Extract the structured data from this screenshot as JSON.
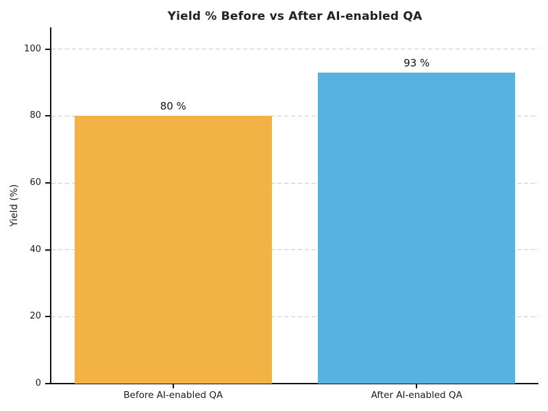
{
  "chart_data": {
    "type": "bar",
    "title": "Yield % Before vs After AI-enabled QA",
    "xlabel": "",
    "ylabel": "Yield (%)",
    "categories": [
      "Before AI-enabled QA",
      "After AI-enabled QA"
    ],
    "values": [
      80,
      93
    ],
    "value_labels": [
      "80 %",
      "93 %"
    ],
    "bar_colors": [
      "#F2B344",
      "#57B1E1"
    ],
    "yticks": [
      0,
      20,
      40,
      60,
      80,
      100
    ],
    "ylim": [
      0,
      106.5
    ],
    "grid": "horizontal dashed gridlines",
    "legend": "none"
  }
}
